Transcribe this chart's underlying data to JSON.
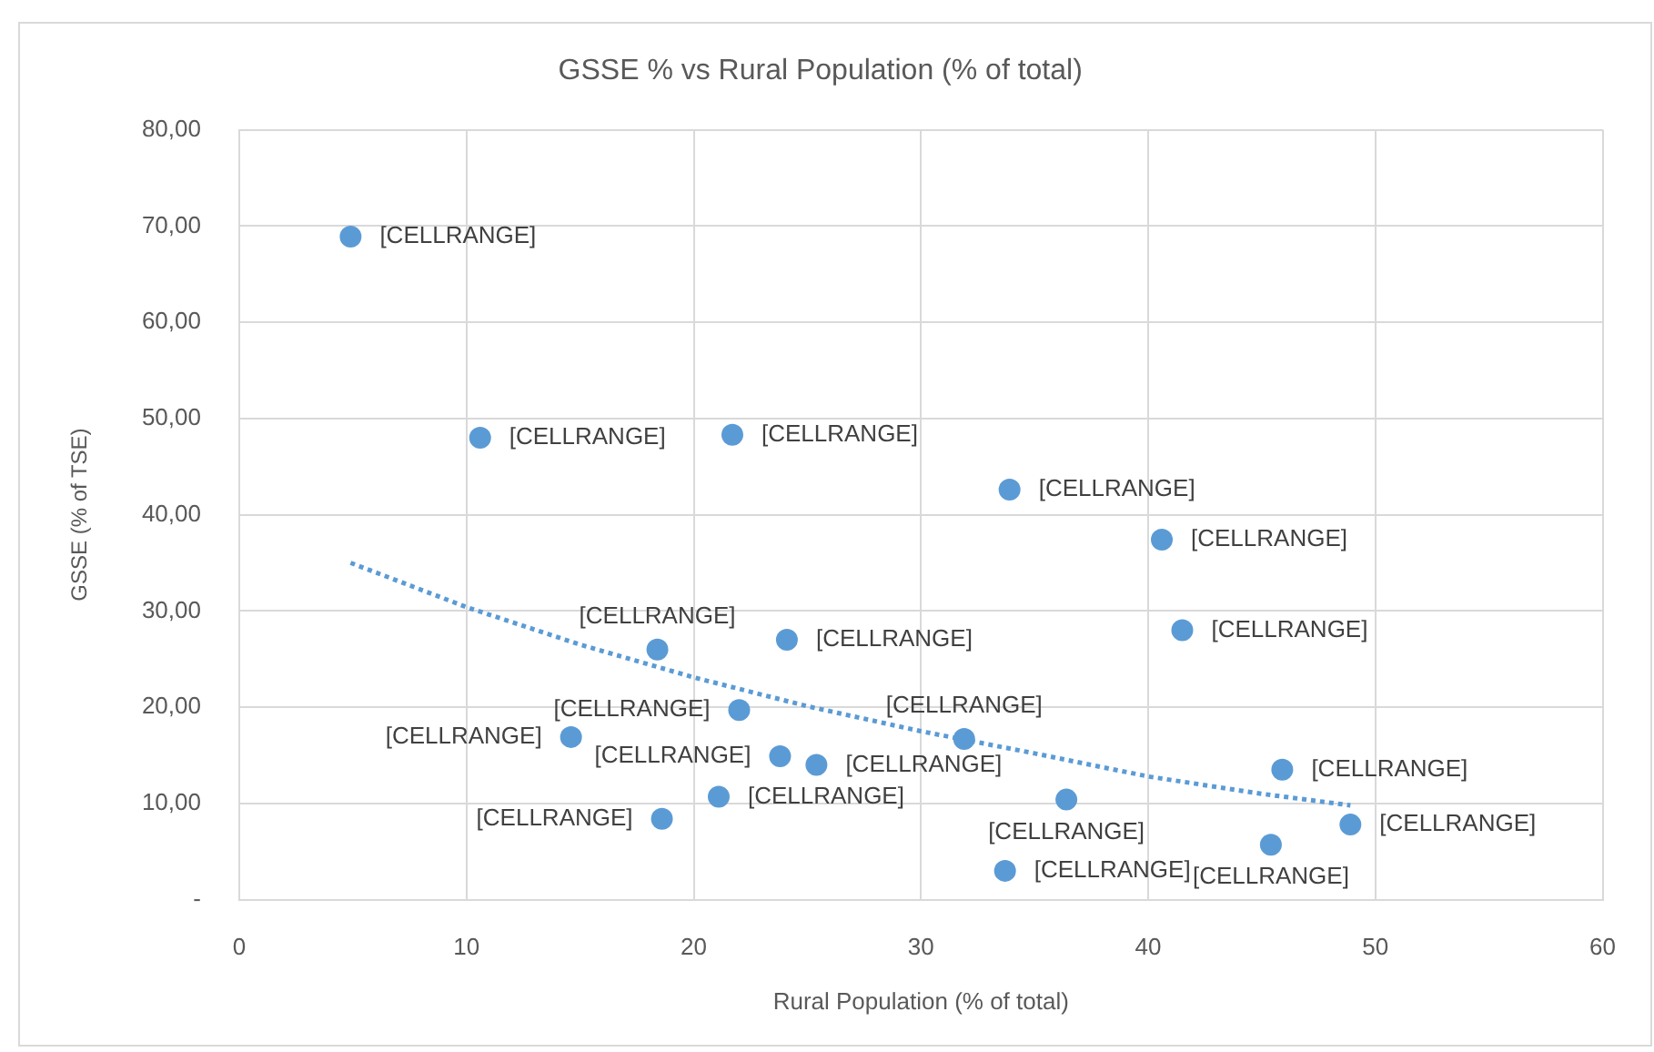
{
  "chart_data": {
    "type": "scatter",
    "title": "GSSE % vs Rural Population (% of total)",
    "xlabel": "Rural Population (% of total)",
    "ylabel": "GSSE (% of TSE)",
    "xlim": [
      0,
      60
    ],
    "ylim": [
      0,
      80
    ],
    "xticks": [
      0,
      10,
      20,
      30,
      40,
      50,
      60
    ],
    "yticks": [
      {
        "value": 0,
        "label": "-"
      },
      {
        "value": 10,
        "label": "10,00"
      },
      {
        "value": 20,
        "label": "20,00"
      },
      {
        "value": 30,
        "label": "30,00"
      },
      {
        "value": 40,
        "label": "40,00"
      },
      {
        "value": 50,
        "label": "50,00"
      },
      {
        "value": 60,
        "label": "60,00"
      },
      {
        "value": 70,
        "label": "70,00"
      },
      {
        "value": 80,
        "label": "80,00"
      }
    ],
    "grid": true,
    "series": [
      {
        "type": "scatter",
        "color": "#5b9bd5",
        "marker": "circle",
        "x": [
          4.9,
          10.6,
          21.7,
          33.9,
          40.6,
          41.5,
          18.4,
          24.1,
          22.0,
          14.6,
          23.8,
          25.4,
          31.9,
          21.1,
          18.6,
          36.4,
          45.9,
          48.9,
          45.4,
          33.7
        ],
        "values": [
          68.9,
          48.0,
          48.3,
          42.6,
          37.4,
          28.0,
          26.0,
          27.0,
          19.7,
          16.9,
          14.9,
          14.0,
          16.7,
          10.7,
          8.4,
          10.4,
          13.5,
          7.8,
          5.7,
          3.0
        ],
        "value_labels": [
          "[CELLRANGE]",
          "[CELLRANGE]",
          "[CELLRANGE]",
          "[CELLRANGE]",
          "[CELLRANGE]",
          "[CELLRANGE]",
          "[CELLRANGE]",
          "[CELLRANGE]",
          "[CELLRANGE]",
          "[CELLRANGE]",
          "[CELLRANGE]",
          "[CELLRANGE]",
          "[CELLRANGE]",
          "[CELLRANGE]",
          "[CELLRANGE]",
          "[CELLRANGE]",
          "[CELLRANGE]",
          "[CELLRANGE]",
          "[CELLRANGE]",
          "[CELLRANGE]"
        ]
      },
      {
        "type": "line",
        "color": "#5b9bd5",
        "marker": "none",
        "line_style": "dotted",
        "x": [
          4.9,
          10,
          15,
          20,
          25,
          30,
          35,
          40,
          45,
          48.9
        ],
        "values": [
          35.0,
          30.4,
          26.5,
          23.1,
          20.1,
          17.5,
          15.2,
          12.8,
          11.0,
          9.8
        ]
      }
    ]
  }
}
